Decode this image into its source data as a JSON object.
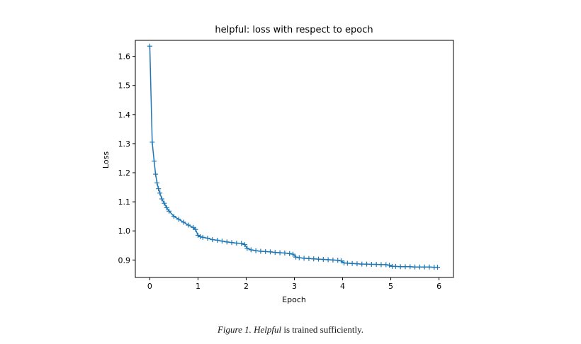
{
  "chart_data": {
    "type": "line",
    "title": "helpful: loss with respect to epoch",
    "xlabel": "Epoch",
    "ylabel": "Loss",
    "xlim": [
      -0.3,
      6.3
    ],
    "ylim": [
      0.84,
      1.655
    ],
    "xticks": [
      0,
      1,
      2,
      3,
      4,
      5,
      6
    ],
    "xtick_labels": [
      "0",
      "1",
      "2",
      "3",
      "4",
      "5",
      "6"
    ],
    "yticks": [
      0.9,
      1.0,
      1.1,
      1.2,
      1.3,
      1.4,
      1.5,
      1.6
    ],
    "ytick_labels": [
      "0.9",
      "1.0",
      "1.1",
      "1.2",
      "1.3",
      "1.4",
      "1.5",
      "1.6"
    ],
    "grid": false,
    "marker": "+",
    "color": "#1f77b4",
    "series": [
      {
        "x": [
          0.0,
          0.05,
          0.09,
          0.12,
          0.15,
          0.18,
          0.21,
          0.25,
          0.3,
          0.35,
          0.4,
          0.5,
          0.6,
          0.7,
          0.8,
          0.9,
          0.95,
          1.0,
          1.05,
          1.1,
          1.2,
          1.3,
          1.4,
          1.5,
          1.6,
          1.7,
          1.8,
          1.9,
          1.97,
          2.02,
          2.1,
          2.2,
          2.3,
          2.4,
          2.5,
          2.6,
          2.7,
          2.8,
          2.9,
          2.97,
          3.03,
          3.1,
          3.2,
          3.3,
          3.4,
          3.5,
          3.6,
          3.7,
          3.8,
          3.9,
          3.97,
          4.03,
          4.1,
          4.2,
          4.3,
          4.4,
          4.5,
          4.6,
          4.7,
          4.8,
          4.9,
          4.97,
          5.03,
          5.1,
          5.2,
          5.3,
          5.4,
          5.5,
          5.6,
          5.7,
          5.8,
          5.9,
          5.97
        ],
        "y": [
          1.635,
          1.305,
          1.24,
          1.195,
          1.165,
          1.145,
          1.13,
          1.11,
          1.095,
          1.08,
          1.068,
          1.05,
          1.04,
          1.03,
          1.02,
          1.012,
          1.005,
          0.985,
          0.98,
          0.978,
          0.975,
          0.97,
          0.968,
          0.965,
          0.962,
          0.96,
          0.958,
          0.957,
          0.953,
          0.94,
          0.935,
          0.932,
          0.93,
          0.929,
          0.928,
          0.926,
          0.925,
          0.924,
          0.922,
          0.92,
          0.91,
          0.908,
          0.906,
          0.905,
          0.904,
          0.903,
          0.902,
          0.901,
          0.9,
          0.899,
          0.897,
          0.89,
          0.889,
          0.888,
          0.887,
          0.886,
          0.886,
          0.885,
          0.885,
          0.884,
          0.884,
          0.882,
          0.878,
          0.878,
          0.877,
          0.877,
          0.877,
          0.876,
          0.876,
          0.876,
          0.876,
          0.875,
          0.875
        ]
      }
    ]
  },
  "caption": {
    "prefix": "Figure 1.",
    "emphasis": "Helpful",
    "rest": "is trained sufficiently."
  }
}
